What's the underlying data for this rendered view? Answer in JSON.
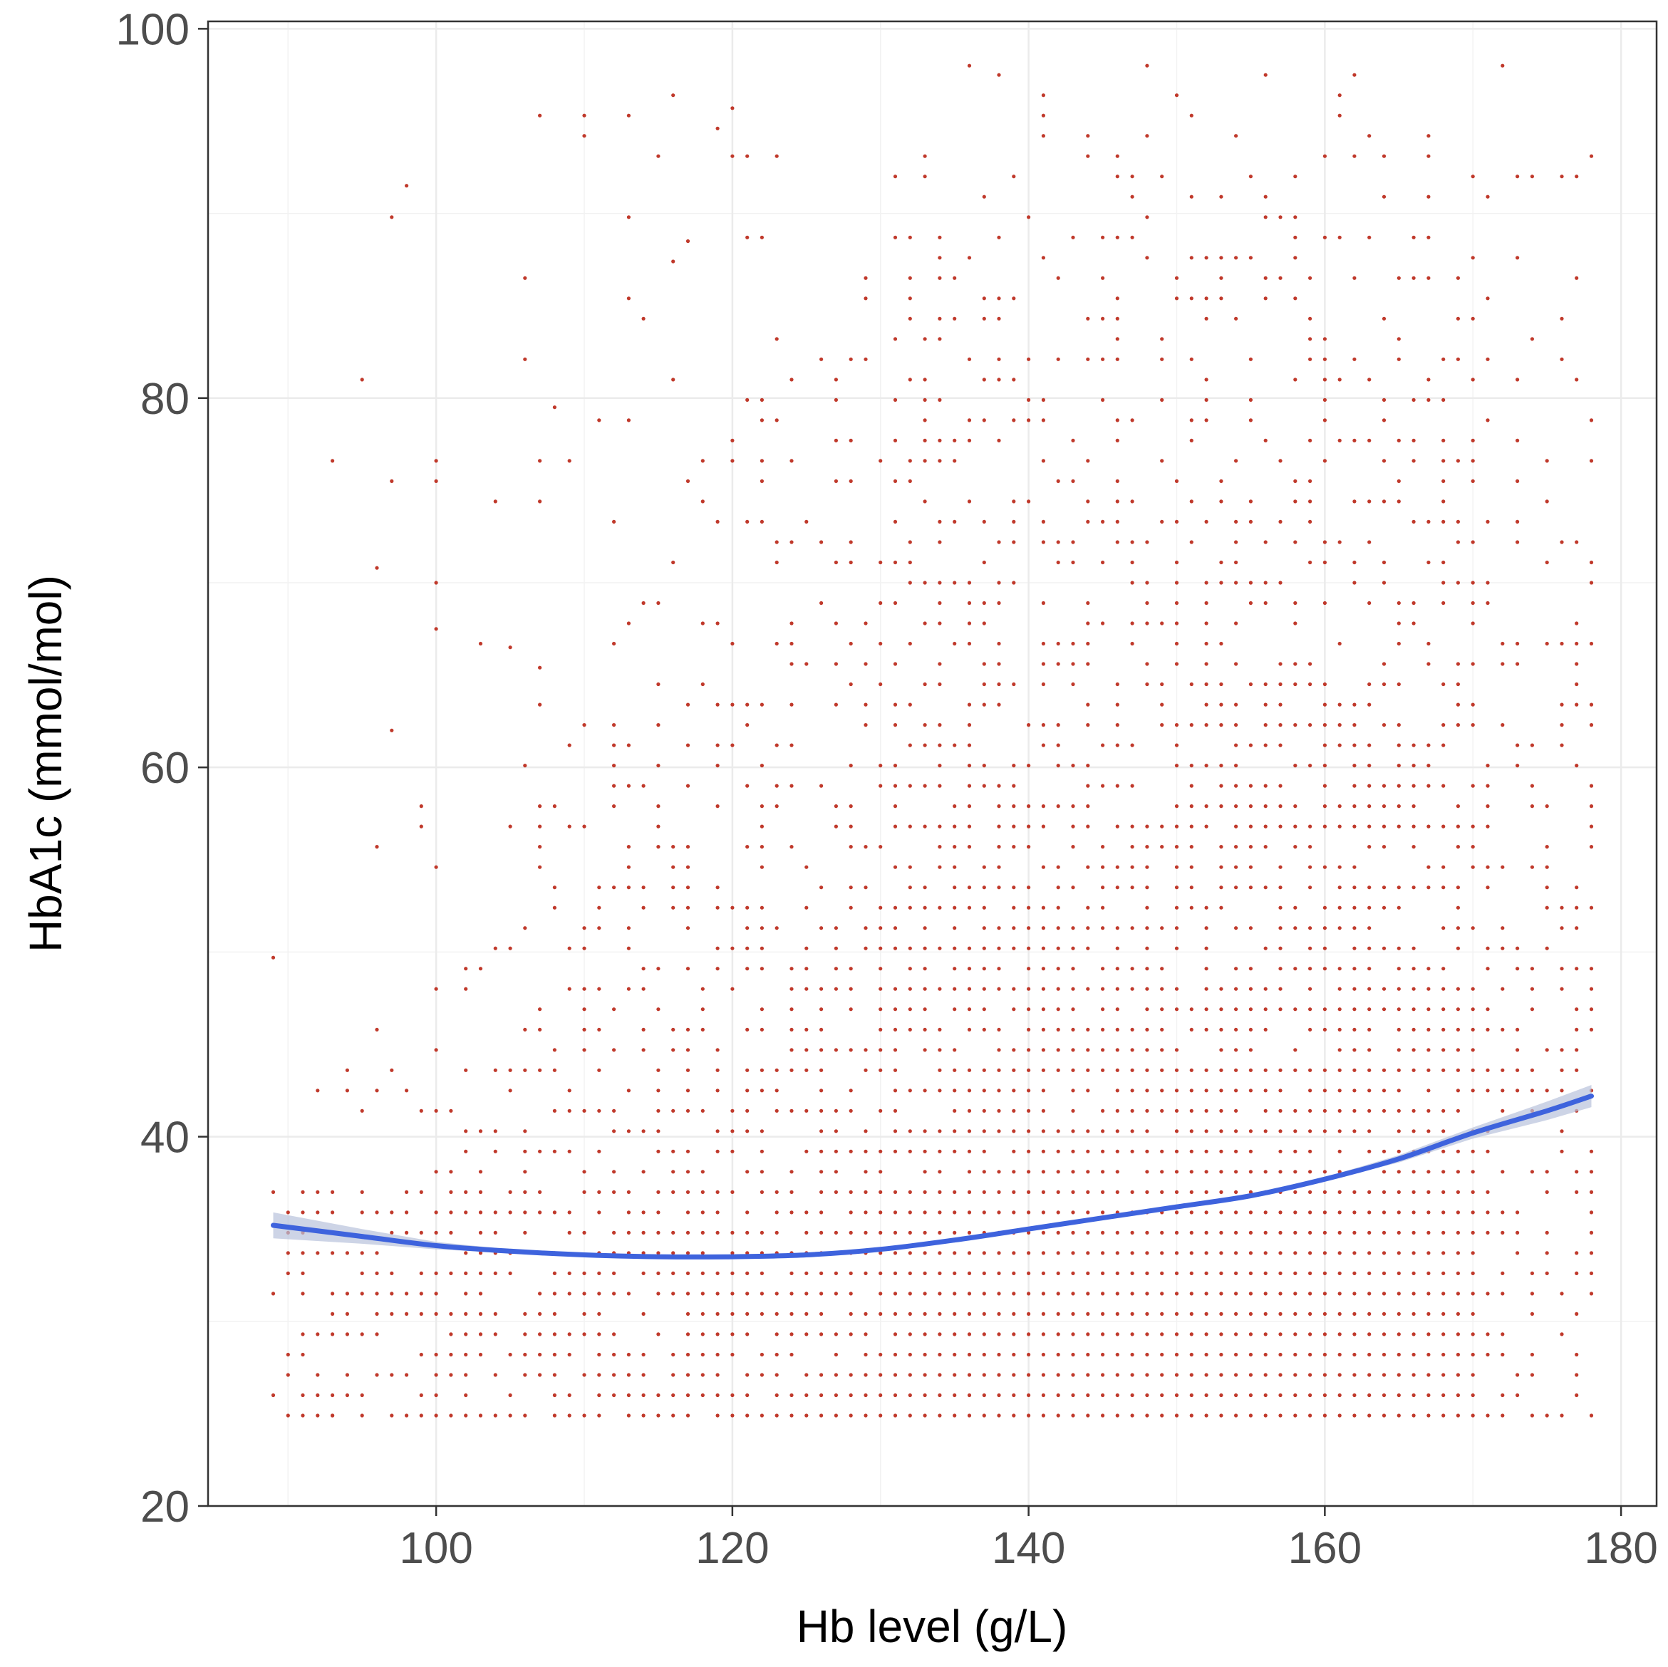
{
  "chart_data": {
    "type": "scatter",
    "title": "",
    "xlabel": "Hb level (g/L)",
    "ylabel": "HbA1c (mmol/mol)",
    "xlim": [
      84.6,
      182.4
    ],
    "ylim": [
      20,
      100.4
    ],
    "x_ticks": [
      100,
      120,
      140,
      160,
      180
    ],
    "y_ticks": [
      20,
      40,
      60,
      80,
      100
    ],
    "x_tick_labels": [
      "100",
      "120",
      "140",
      "160",
      "180"
    ],
    "y_tick_labels": [
      "20",
      "40",
      "60",
      "80",
      "100"
    ],
    "grid": true,
    "legend": "none",
    "point_color": "#c0392b",
    "line_color": "#3e63dd",
    "band_color": "#b8c2dc",
    "point_x_range": [
      89,
      178
    ],
    "point_y_range": [
      24.9,
      98.0
    ],
    "points_sample": [
      {
        "x": 98,
        "y": 91.5
      },
      {
        "x": 96,
        "y": 70.8
      },
      {
        "x": 100,
        "y": 67.5
      },
      {
        "x": 97,
        "y": 62.0
      },
      {
        "x": 105,
        "y": 66.5
      },
      {
        "x": 107,
        "y": 65.4
      },
      {
        "x": 108,
        "y": 79.5
      },
      {
        "x": 120,
        "y": 95.7
      },
      {
        "x": 119,
        "y": 94.6
      },
      {
        "x": 116,
        "y": 87.4
      },
      {
        "x": 117,
        "y": 88.5
      },
      {
        "x": 136,
        "y": 98.0
      },
      {
        "x": 148,
        "y": 98.0
      },
      {
        "x": 172,
        "y": 98.0
      },
      {
        "x": 89,
        "y": 49.7
      },
      {
        "x": 93,
        "y": 24.9
      }
    ],
    "series": [
      {
        "name": "",
        "type": "smooth",
        "x": [
          89,
          95,
          100,
          105,
          110,
          115,
          120,
          125,
          130,
          135,
          140,
          145,
          150,
          155,
          160,
          165,
          170,
          175,
          178
        ],
        "y": [
          35.2,
          34.6,
          34.1,
          33.8,
          33.6,
          33.5,
          33.5,
          33.6,
          33.9,
          34.4,
          35.0,
          35.6,
          36.2,
          36.8,
          37.7,
          38.8,
          40.2,
          41.4,
          42.2
        ],
        "se_lower": [
          34.5,
          34.2,
          33.9,
          33.7,
          33.5,
          33.4,
          33.4,
          33.5,
          33.8,
          34.3,
          34.9,
          35.5,
          36.1,
          36.7,
          37.6,
          38.6,
          39.9,
          40.9,
          41.6
        ],
        "se_upper": [
          35.9,
          35.0,
          34.3,
          33.9,
          33.7,
          33.6,
          33.6,
          33.7,
          34.0,
          34.5,
          35.1,
          35.7,
          36.3,
          36.9,
          37.8,
          39.0,
          40.5,
          41.9,
          42.8
        ]
      }
    ]
  }
}
